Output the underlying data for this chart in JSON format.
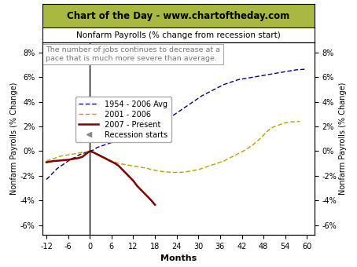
{
  "title_banner": "Chart of the Day - www.chartoftheday.com",
  "title_banner_bg": "#a8b840",
  "subtitle": "Nonfarm Payrolls (% change from recession start)",
  "annotation": "The number of jobs continues to decrease at a\npace that is much more severe than average.",
  "xlabel": "Months",
  "ylabel": "Nonfarm Payrolls (% Change)",
  "xlim": [
    -13,
    62
  ],
  "ylim": [
    -6.8,
    8.8
  ],
  "yticks": [
    -6,
    -4,
    -2,
    0,
    2,
    4,
    6,
    8
  ],
  "ytick_labels": [
    "-6%",
    "-4%",
    "-2%",
    "0%",
    "2%",
    "4%",
    "6%",
    "8%"
  ],
  "xticks": [
    -12,
    -6,
    0,
    6,
    12,
    18,
    24,
    30,
    36,
    42,
    48,
    54,
    60
  ],
  "bg_color": "#ffffff",
  "line1_color": "#00008b",
  "line2_color": "#b8a000",
  "line3_color": "#800000",
  "recession_label": "Recession starts",
  "line1_label": "1954 - 2006 Avg",
  "line2_label": "2001 - 2006",
  "line3_label": "2007 - Present",
  "avg_x": [
    -12,
    -11,
    -10,
    -9,
    -8,
    -7,
    -6,
    -5,
    -4,
    -3,
    -2,
    -1,
    0,
    1,
    2,
    3,
    4,
    5,
    6,
    7,
    8,
    9,
    10,
    11,
    12,
    13,
    14,
    15,
    16,
    17,
    18,
    19,
    20,
    21,
    22,
    23,
    24,
    25,
    26,
    27,
    28,
    29,
    30,
    31,
    32,
    33,
    34,
    35,
    36,
    37,
    38,
    39,
    40,
    41,
    42,
    43,
    44,
    45,
    46,
    47,
    48,
    49,
    50,
    51,
    52,
    53,
    54,
    55,
    56,
    57,
    58,
    59,
    60
  ],
  "avg_y": [
    -2.3,
    -2.0,
    -1.7,
    -1.4,
    -1.2,
    -1.0,
    -0.8,
    -0.6,
    -0.5,
    -0.3,
    -0.2,
    -0.1,
    0.0,
    0.1,
    0.3,
    0.4,
    0.5,
    0.6,
    0.7,
    0.75,
    0.8,
    0.9,
    1.0,
    1.1,
    1.2,
    1.3,
    1.4,
    1.5,
    1.6,
    1.75,
    1.9,
    2.1,
    2.3,
    2.5,
    2.7,
    2.9,
    3.1,
    3.3,
    3.5,
    3.7,
    3.9,
    4.1,
    4.3,
    4.5,
    4.65,
    4.8,
    4.95,
    5.1,
    5.25,
    5.4,
    5.5,
    5.6,
    5.7,
    5.8,
    5.85,
    5.9,
    5.95,
    6.0,
    6.05,
    6.1,
    6.15,
    6.2,
    6.25,
    6.3,
    6.35,
    6.4,
    6.45,
    6.5,
    6.55,
    6.6,
    6.62,
    6.64,
    6.66
  ],
  "rec2001_x": [
    -12,
    -11,
    -10,
    -9,
    -8,
    -7,
    -6,
    -5,
    -4,
    -3,
    -2,
    -1,
    0,
    1,
    2,
    3,
    4,
    5,
    6,
    7,
    8,
    9,
    10,
    11,
    12,
    13,
    14,
    15,
    16,
    17,
    18,
    19,
    20,
    21,
    22,
    23,
    24,
    25,
    26,
    27,
    28,
    29,
    30,
    31,
    32,
    33,
    34,
    35,
    36,
    37,
    38,
    39,
    40,
    41,
    42,
    43,
    44,
    45,
    46,
    47,
    48,
    49,
    50,
    51,
    52,
    53,
    54,
    55,
    56,
    57,
    58
  ],
  "rec2001_y": [
    -0.8,
    -0.7,
    -0.6,
    -0.5,
    -0.4,
    -0.35,
    -0.3,
    -0.25,
    -0.2,
    -0.15,
    -0.1,
    -0.05,
    0.0,
    -0.1,
    -0.2,
    -0.35,
    -0.5,
    -0.65,
    -0.8,
    -0.9,
    -1.0,
    -1.05,
    -1.1,
    -1.15,
    -1.2,
    -1.25,
    -1.3,
    -1.35,
    -1.4,
    -1.5,
    -1.55,
    -1.6,
    -1.65,
    -1.68,
    -1.7,
    -1.72,
    -1.72,
    -1.72,
    -1.7,
    -1.65,
    -1.6,
    -1.55,
    -1.5,
    -1.4,
    -1.3,
    -1.2,
    -1.1,
    -1.0,
    -0.9,
    -0.8,
    -0.65,
    -0.5,
    -0.35,
    -0.2,
    -0.05,
    0.1,
    0.3,
    0.5,
    0.75,
    1.0,
    1.3,
    1.6,
    1.85,
    2.0,
    2.1,
    2.2,
    2.3,
    2.35,
    2.38,
    2.4,
    2.42
  ],
  "rec2007_x": [
    -12,
    -11,
    -10,
    -9,
    -8,
    -7,
    -6,
    -5,
    -4,
    -3,
    -2,
    -1,
    0,
    1,
    2,
    3,
    4,
    5,
    6,
    7,
    8,
    9,
    10,
    11,
    12,
    13,
    14,
    15,
    16,
    17,
    18
  ],
  "rec2007_y": [
    -0.9,
    -0.85,
    -0.8,
    -0.78,
    -0.75,
    -0.72,
    -0.7,
    -0.65,
    -0.6,
    -0.55,
    -0.45,
    -0.2,
    0.0,
    -0.1,
    -0.25,
    -0.4,
    -0.55,
    -0.7,
    -0.85,
    -1.0,
    -1.2,
    -1.5,
    -1.8,
    -2.1,
    -2.4,
    -2.8,
    -3.1,
    -3.4,
    -3.7,
    -4.0,
    -4.35
  ]
}
